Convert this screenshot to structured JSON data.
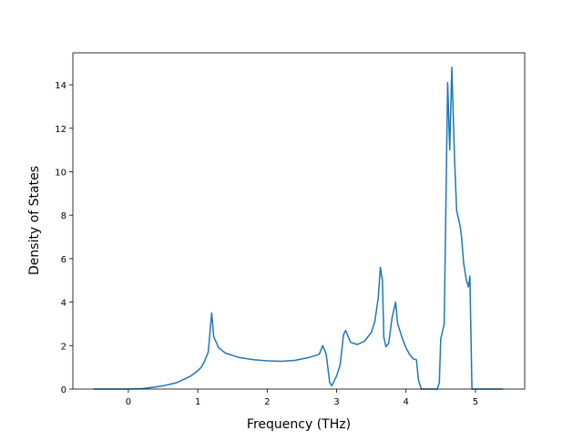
{
  "chart_data": {
    "type": "line",
    "x_label": "Frequency (THz)",
    "y_label": "Density of States",
    "xlim": [
      -0.8,
      5.71
    ],
    "ylim": [
      0,
      15.47
    ],
    "xticks": [
      0,
      1,
      2,
      3,
      4,
      5
    ],
    "yticks": [
      0,
      2,
      4,
      6,
      8,
      10,
      12,
      14
    ],
    "x": [
      -0.5,
      0,
      0.2,
      0.4,
      0.5,
      0.6,
      0.7,
      0.8,
      0.9,
      1.0,
      1.05,
      1.1,
      1.15,
      1.2,
      1.23,
      1.3,
      1.4,
      1.5,
      1.6,
      1.8,
      2.0,
      2.2,
      2.4,
      2.6,
      2.7,
      2.75,
      2.8,
      2.85,
      2.9,
      2.93,
      3.0,
      3.05,
      3.1,
      3.13,
      3.2,
      3.3,
      3.4,
      3.5,
      3.55,
      3.6,
      3.63,
      3.66,
      3.68,
      3.71,
      3.75,
      3.8,
      3.85,
      3.88,
      3.95,
      4.0,
      4.05,
      4.1,
      4.15,
      4.18,
      4.22,
      4.45,
      4.48,
      4.5,
      4.55,
      4.6,
      4.63,
      4.66,
      4.7,
      4.73,
      4.78,
      4.8,
      4.83,
      4.87,
      4.9,
      4.92,
      4.95,
      5.4
    ],
    "series": [
      {
        "color": "#1f77b4",
        "values": [
          0,
          0,
          0.02,
          0.1,
          0.15,
          0.22,
          0.3,
          0.45,
          0.6,
          0.85,
          1.0,
          1.3,
          1.7,
          3.5,
          2.4,
          1.9,
          1.65,
          1.55,
          1.45,
          1.35,
          1.3,
          1.28,
          1.32,
          1.45,
          1.55,
          1.6,
          2.0,
          1.6,
          0.3,
          0.15,
          0.6,
          1.1,
          2.5,
          2.7,
          2.15,
          2.05,
          2.2,
          2.6,
          3.1,
          4.2,
          5.6,
          5.0,
          2.4,
          1.95,
          2.1,
          3.3,
          4.0,
          3.0,
          2.3,
          1.9,
          1.6,
          1.4,
          1.35,
          0.4,
          0,
          0,
          0.3,
          2.3,
          3.0,
          14.1,
          11.0,
          14.8,
          10.5,
          8.2,
          7.5,
          7.0,
          5.8,
          5.0,
          4.7,
          5.2,
          0,
          0
        ]
      }
    ]
  }
}
